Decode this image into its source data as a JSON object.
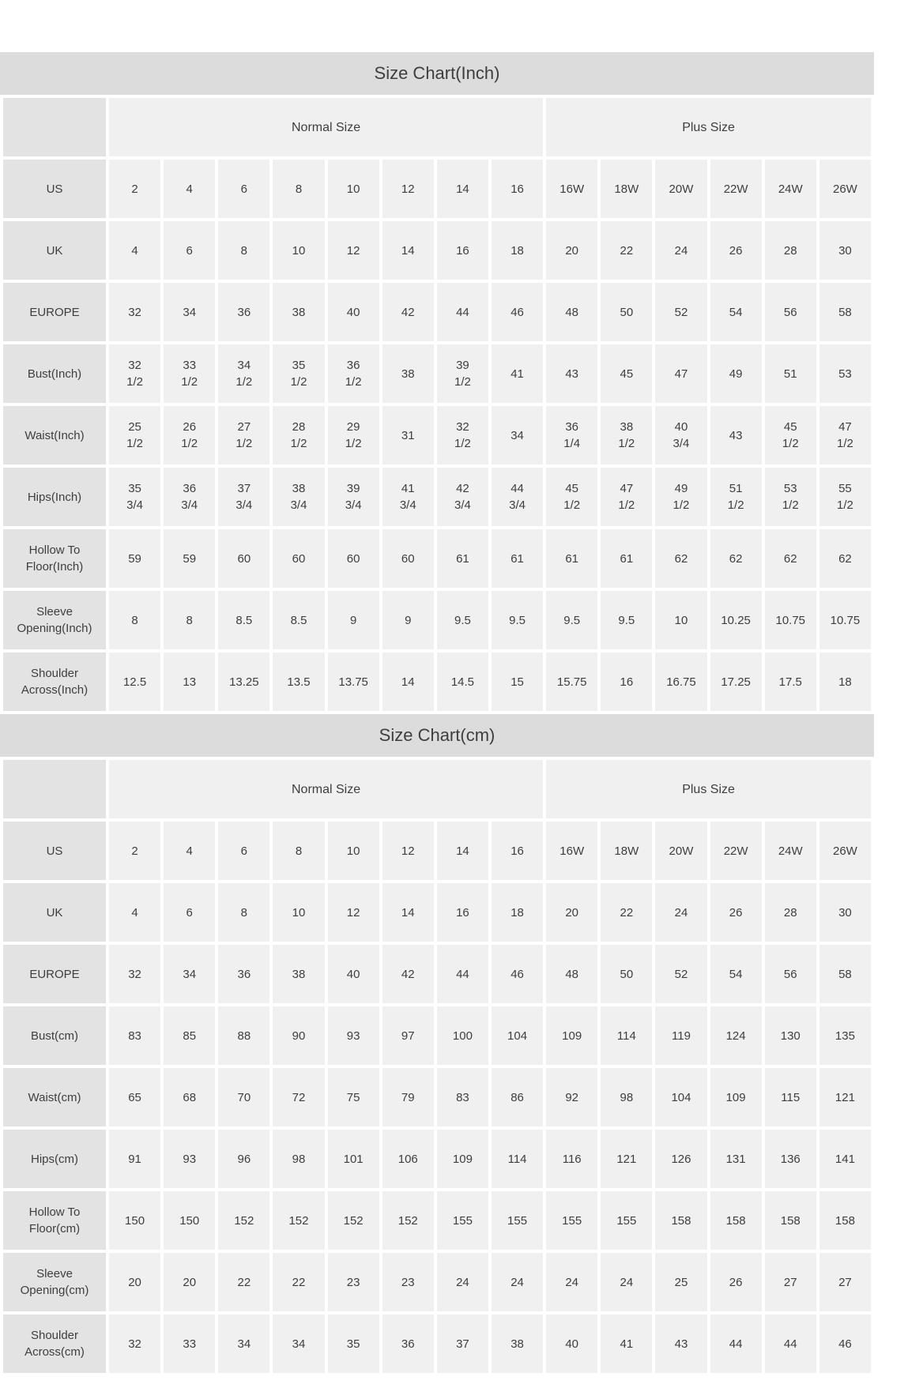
{
  "colors": {
    "title_bar_bg": "#dcdcdc",
    "label_cell_bg": "#e3e3e3",
    "data_cell_bg": "#f0f0f0",
    "text": "#3e3e3e",
    "gap": "#ffffff"
  },
  "tables": [
    {
      "title": "Size Chart(Inch)",
      "group_headers": [
        {
          "label": "",
          "span": 1
        },
        {
          "label": "Normal Size",
          "span": 8
        },
        {
          "label": "Plus Size",
          "span": 6
        }
      ],
      "rows": [
        {
          "label": "US",
          "values": [
            "2",
            "4",
            "6",
            "8",
            "10",
            "12",
            "14",
            "16",
            "16W",
            "18W",
            "20W",
            "22W",
            "24W",
            "26W"
          ]
        },
        {
          "label": "UK",
          "values": [
            "4",
            "6",
            "8",
            "10",
            "12",
            "14",
            "16",
            "18",
            "20",
            "22",
            "24",
            "26",
            "28",
            "30"
          ]
        },
        {
          "label": "EUROPE",
          "values": [
            "32",
            "34",
            "36",
            "38",
            "40",
            "42",
            "44",
            "46",
            "48",
            "50",
            "52",
            "54",
            "56",
            "58"
          ]
        },
        {
          "label": "Bust(Inch)",
          "values": [
            "32\n1/2",
            "33\n1/2",
            "34\n1/2",
            "35\n1/2",
            "36\n1/2",
            "38",
            "39\n1/2",
            "41",
            "43",
            "45",
            "47",
            "49",
            "51",
            "53"
          ]
        },
        {
          "label": "Waist(Inch)",
          "values": [
            "25\n1/2",
            "26\n1/2",
            "27\n1/2",
            "28\n1/2",
            "29\n1/2",
            "31",
            "32\n1/2",
            "34",
            "36\n1/4",
            "38\n1/2",
            "40\n3/4",
            "43",
            "45\n1/2",
            "47\n1/2"
          ]
        },
        {
          "label": "Hips(Inch)",
          "values": [
            "35\n3/4",
            "36\n3/4",
            "37\n3/4",
            "38\n3/4",
            "39\n3/4",
            "41\n3/4",
            "42\n3/4",
            "44\n3/4",
            "45\n1/2",
            "47\n1/2",
            "49\n1/2",
            "51\n1/2",
            "53\n1/2",
            "55\n1/2"
          ]
        },
        {
          "label": "Hollow To Floor(Inch)",
          "values": [
            "59",
            "59",
            "60",
            "60",
            "60",
            "60",
            "61",
            "61",
            "61",
            "61",
            "62",
            "62",
            "62",
            "62"
          ]
        },
        {
          "label": "Sleeve Opening(Inch)",
          "values": [
            "8",
            "8",
            "8.5",
            "8.5",
            "9",
            "9",
            "9.5",
            "9.5",
            "9.5",
            "9.5",
            "10",
            "10.25",
            "10.75",
            "10.75"
          ]
        },
        {
          "label": "Shoulder Across(Inch)",
          "values": [
            "12.5",
            "13",
            "13.25",
            "13.5",
            "13.75",
            "14",
            "14.5",
            "15",
            "15.75",
            "16",
            "16.75",
            "17.25",
            "17.5",
            "18"
          ]
        }
      ]
    },
    {
      "title": "Size Chart(cm)",
      "group_headers": [
        {
          "label": "",
          "span": 1
        },
        {
          "label": "Normal Size",
          "span": 8
        },
        {
          "label": "Plus Size",
          "span": 6
        }
      ],
      "rows": [
        {
          "label": "US",
          "values": [
            "2",
            "4",
            "6",
            "8",
            "10",
            "12",
            "14",
            "16",
            "16W",
            "18W",
            "20W",
            "22W",
            "24W",
            "26W"
          ]
        },
        {
          "label": "UK",
          "values": [
            "4",
            "6",
            "8",
            "10",
            "12",
            "14",
            "16",
            "18",
            "20",
            "22",
            "24",
            "26",
            "28",
            "30"
          ]
        },
        {
          "label": "EUROPE",
          "values": [
            "32",
            "34",
            "36",
            "38",
            "40",
            "42",
            "44",
            "46",
            "48",
            "50",
            "52",
            "54",
            "56",
            "58"
          ]
        },
        {
          "label": "Bust(cm)",
          "values": [
            "83",
            "85",
            "88",
            "90",
            "93",
            "97",
            "100",
            "104",
            "109",
            "114",
            "119",
            "124",
            "130",
            "135"
          ]
        },
        {
          "label": "Waist(cm)",
          "values": [
            "65",
            "68",
            "70",
            "72",
            "75",
            "79",
            "83",
            "86",
            "92",
            "98",
            "104",
            "109",
            "115",
            "121"
          ]
        },
        {
          "label": "Hips(cm)",
          "values": [
            "91",
            "93",
            "96",
            "98",
            "101",
            "106",
            "109",
            "114",
            "116",
            "121",
            "126",
            "131",
            "136",
            "141"
          ]
        },
        {
          "label": "Hollow To Floor(cm)",
          "values": [
            "150",
            "150",
            "152",
            "152",
            "152",
            "152",
            "155",
            "155",
            "155",
            "155",
            "158",
            "158",
            "158",
            "158"
          ]
        },
        {
          "label": "Sleeve Opening(cm)",
          "values": [
            "20",
            "20",
            "22",
            "22",
            "23",
            "23",
            "24",
            "24",
            "24",
            "24",
            "25",
            "26",
            "27",
            "27"
          ]
        },
        {
          "label": "Shoulder Across(cm)",
          "values": [
            "32",
            "33",
            "34",
            "34",
            "35",
            "36",
            "37",
            "38",
            "40",
            "41",
            "43",
            "44",
            "44",
            "46"
          ]
        }
      ]
    }
  ]
}
